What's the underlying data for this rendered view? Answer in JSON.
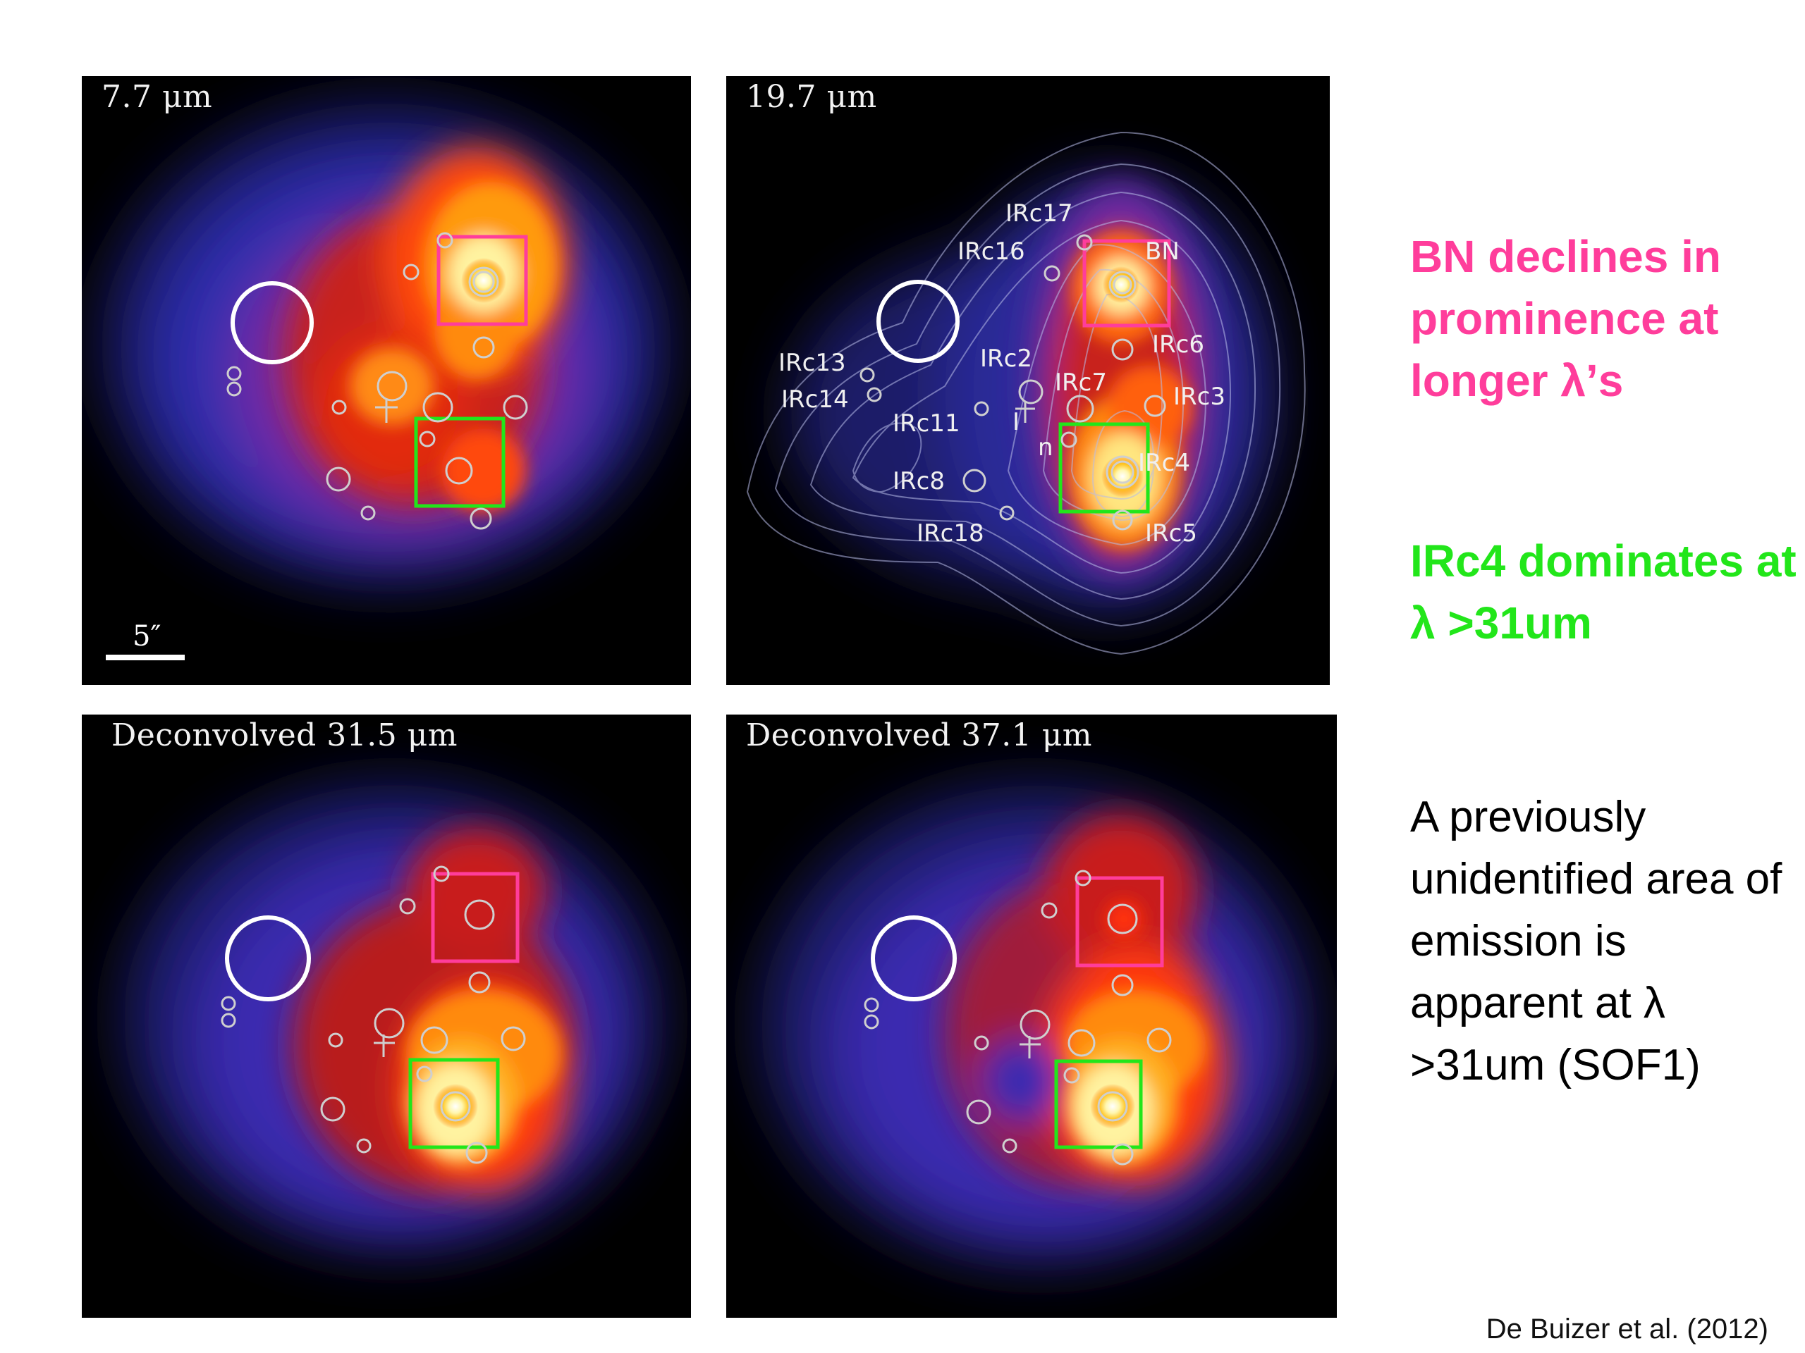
{
  "panels": [
    {
      "label": "7.7 μm"
    },
    {
      "label": "19.7 μm"
    },
    {
      "label": "Deconvolved 31.5 μm"
    },
    {
      "label": "Deconvolved 37.1 μm"
    }
  ],
  "scale_bar_label": "5″",
  "sources": {
    "IRc17": "IRc17",
    "IRc16": "IRc16",
    "BN": "BN",
    "IRc6": "IRc6",
    "IRc13": "IRc13",
    "IRc2": "IRc2",
    "IRc7": "IRc7",
    "IRc3": "IRc3",
    "IRc14": "IRc14",
    "IRc11": "IRc11",
    "I": "I",
    "n": "n",
    "IRc4": "IRc4",
    "IRc8": "IRc8",
    "IRc18": "IRc18",
    "IRc5": "IRc5"
  },
  "notes": {
    "bn": "BN declines in prominence at longer λ’s",
    "irc4": "IRc4 dominates at λ >31um",
    "new_area": "A previously unidentified area of emission is apparent  at λ >31um (SOF1)"
  },
  "citation": "De Buizer et al. (2012)",
  "colors": {
    "bn_box": "#ff3d9b",
    "irc4_box": "#22e61a",
    "new_area_circle": "#ffffff"
  }
}
